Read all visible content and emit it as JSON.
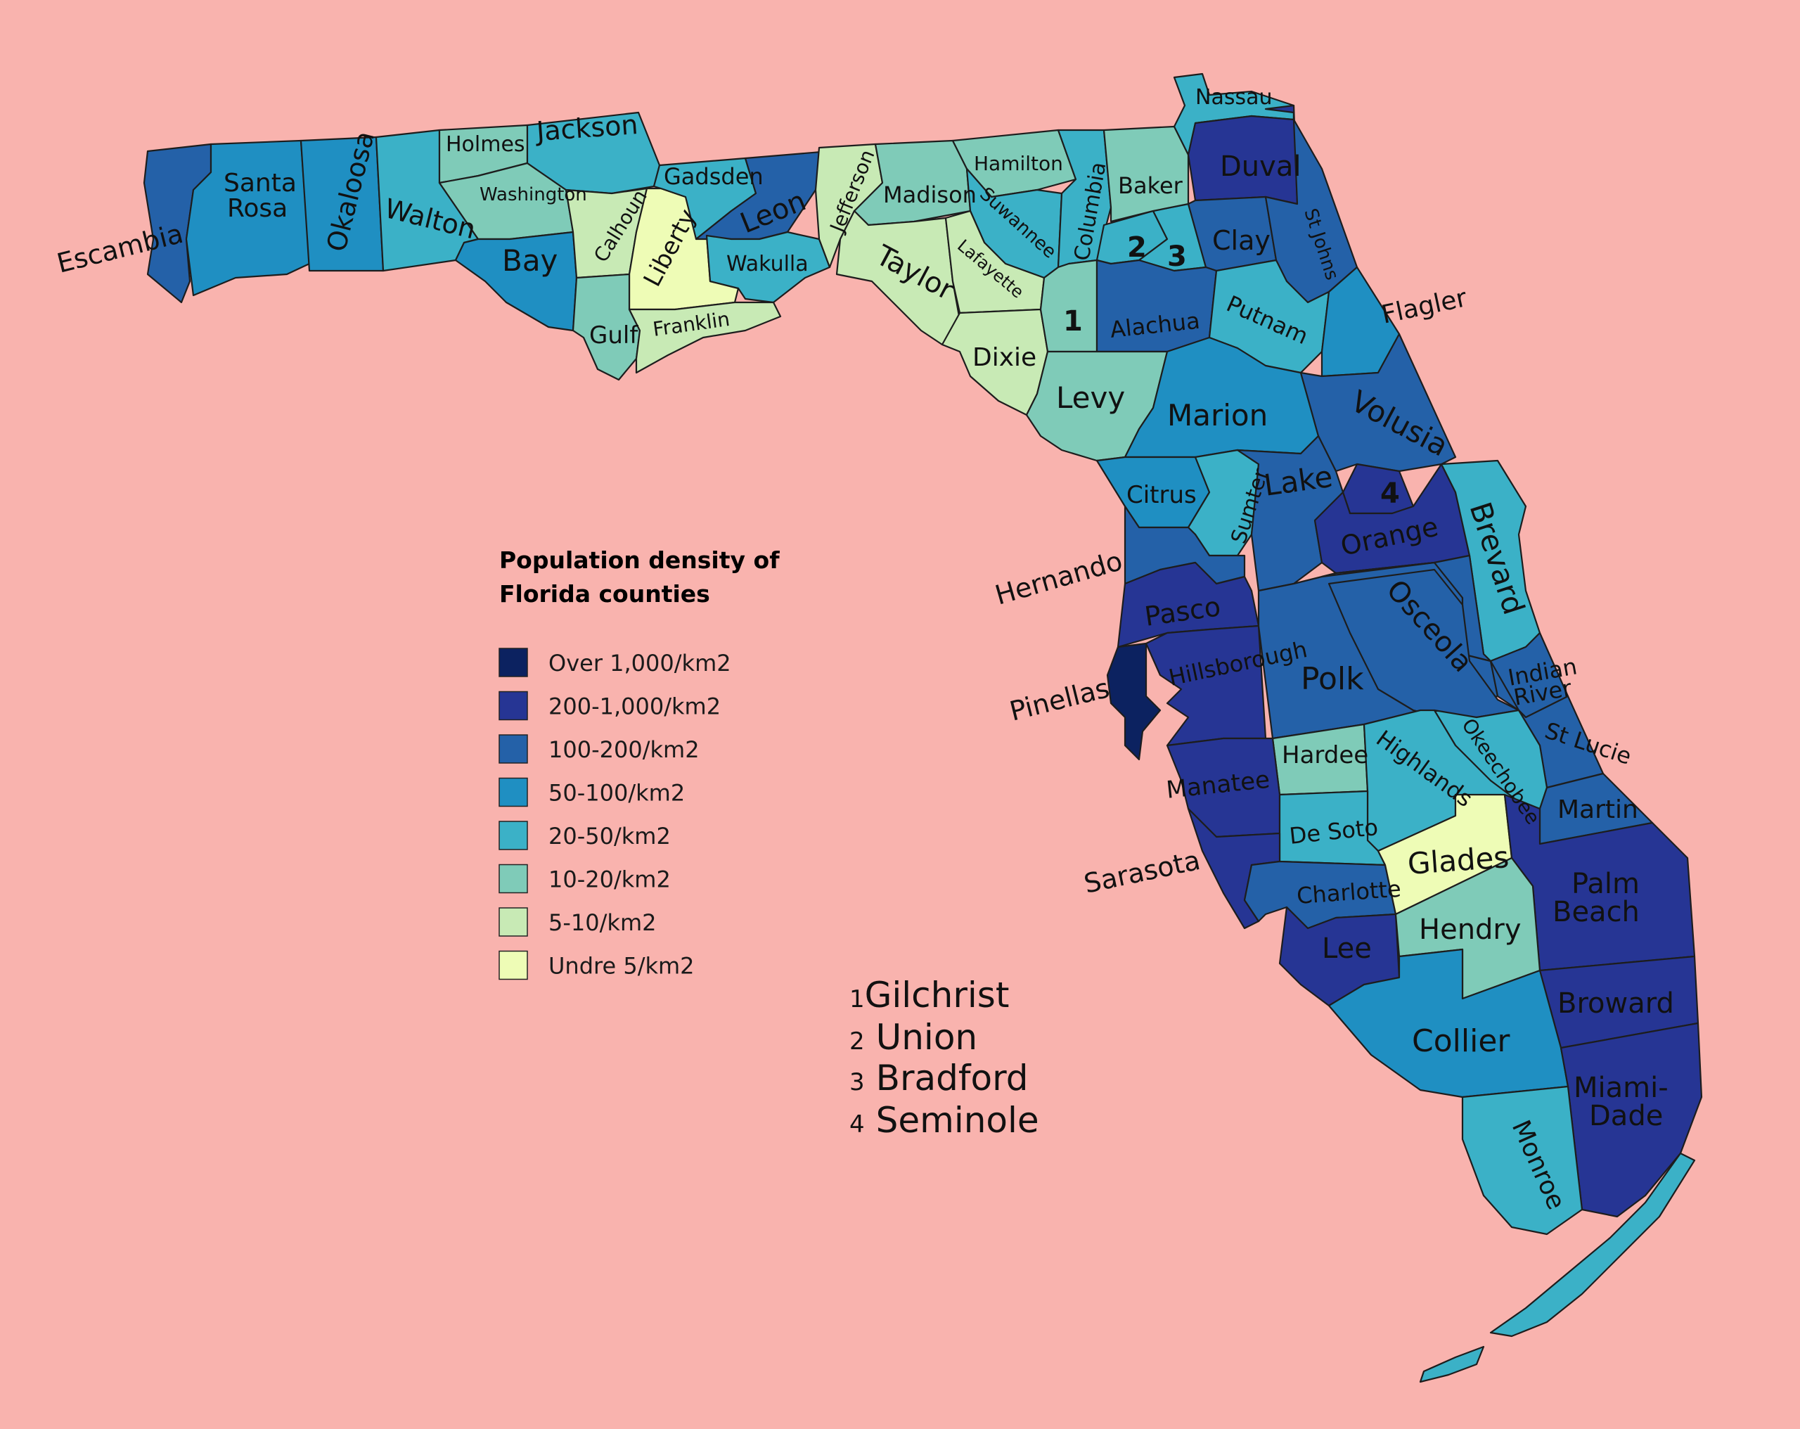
{
  "colors": {
    "background": "#f9b3ae",
    "over_1000": "#0c2260",
    "d200_1000": "#263594",
    "d100_200": "#2461a8",
    "d50_100": "#1f8fc2",
    "d20_50": "#3bb1c7",
    "d10_20": "#7fcbb8",
    "d5_10": "#c8eab5",
    "under_5": "#eefcb6"
  },
  "legend": {
    "title_line1": "Population density of",
    "title_line2": "Florida counties",
    "items": [
      {
        "label": "Over 1,000/km2",
        "color": "#0c2260"
      },
      {
        "label": "200-1,000/km2",
        "color": "#263594"
      },
      {
        "label": "100-200/km2",
        "color": "#2461a8"
      },
      {
        "label": "50-100/km2",
        "color": "#1f8fc2"
      },
      {
        "label": "20-50/km2",
        "color": "#3bb1c7"
      },
      {
        "label": "10-20/km2",
        "color": "#7fcbb8"
      },
      {
        "label": "5-10/km2",
        "color": "#c8eab5"
      },
      {
        "label": "Undre 5/km2",
        "color": "#eefcb6"
      }
    ]
  },
  "key": [
    {
      "num": "1",
      "name": "Gilchrist"
    },
    {
      "num": "2",
      "name": "Union"
    },
    {
      "num": "3",
      "name": "Bradford"
    },
    {
      "num": "4",
      "name": "Seminole"
    }
  ],
  "counties": {
    "escambia": "Escambia",
    "santa_rosa_1": "Santa",
    "santa_rosa_2": "Rosa",
    "okaloosa": "Okaloosa",
    "walton": "Walton",
    "holmes": "Holmes",
    "washington": "Washington",
    "jackson": "Jackson",
    "bay": "Bay",
    "calhoun": "Calhoun",
    "liberty": "Liberty",
    "gadsden": "Gadsden",
    "leon": "Leon",
    "wakulla": "Wakulla",
    "gulf": "Gulf",
    "franklin": "Franklin",
    "jefferson": "Jefferson",
    "madison": "Madison",
    "taylor": "Taylor",
    "hamilton": "Hamilton",
    "suwannee": "Suwannee",
    "lafayette": "Lafayette",
    "columbia": "Columbia",
    "dixie": "Dixie",
    "gilchrist": "1",
    "union": "2",
    "bradford": "3",
    "baker": "Baker",
    "nassau": "Nassau",
    "duval": "Duval",
    "clay": "Clay",
    "st_johns": "St Johns",
    "alachua": "Alachua",
    "putnam": "Putnam",
    "flagler": "Flagler",
    "levy": "Levy",
    "marion": "Marion",
    "volusia": "Volusia",
    "citrus": "Citrus",
    "sumter": "Sumter",
    "lake": "Lake",
    "seminole": "4",
    "orange": "Orange",
    "brevard": "Brevard",
    "hernando": "Hernando",
    "pasco": "Pasco",
    "pinellas": "Pinellas",
    "hillsborough": "Hillsborough",
    "polk": "Polk",
    "osceola": "Osceola",
    "indian_river_1": "Indian",
    "indian_river_2": "River",
    "st_lucie": "St Lucie",
    "okeechobee": "Okeechobee",
    "hardee": "Hardee",
    "highlands": "Highlands",
    "manatee": "Manatee",
    "de_soto": "De Soto",
    "sarasota": "Sarasota",
    "charlotte": "Charlotte",
    "glades": "Glades",
    "martin": "Martin",
    "palm_beach_1": "Palm",
    "palm_beach_2": "Beach",
    "lee": "Lee",
    "hendry": "Hendry",
    "broward": "Broward",
    "collier": "Collier",
    "miami_dade_1": "Miami-",
    "miami_dade_2": "Dade",
    "monroe": "Monroe"
  }
}
